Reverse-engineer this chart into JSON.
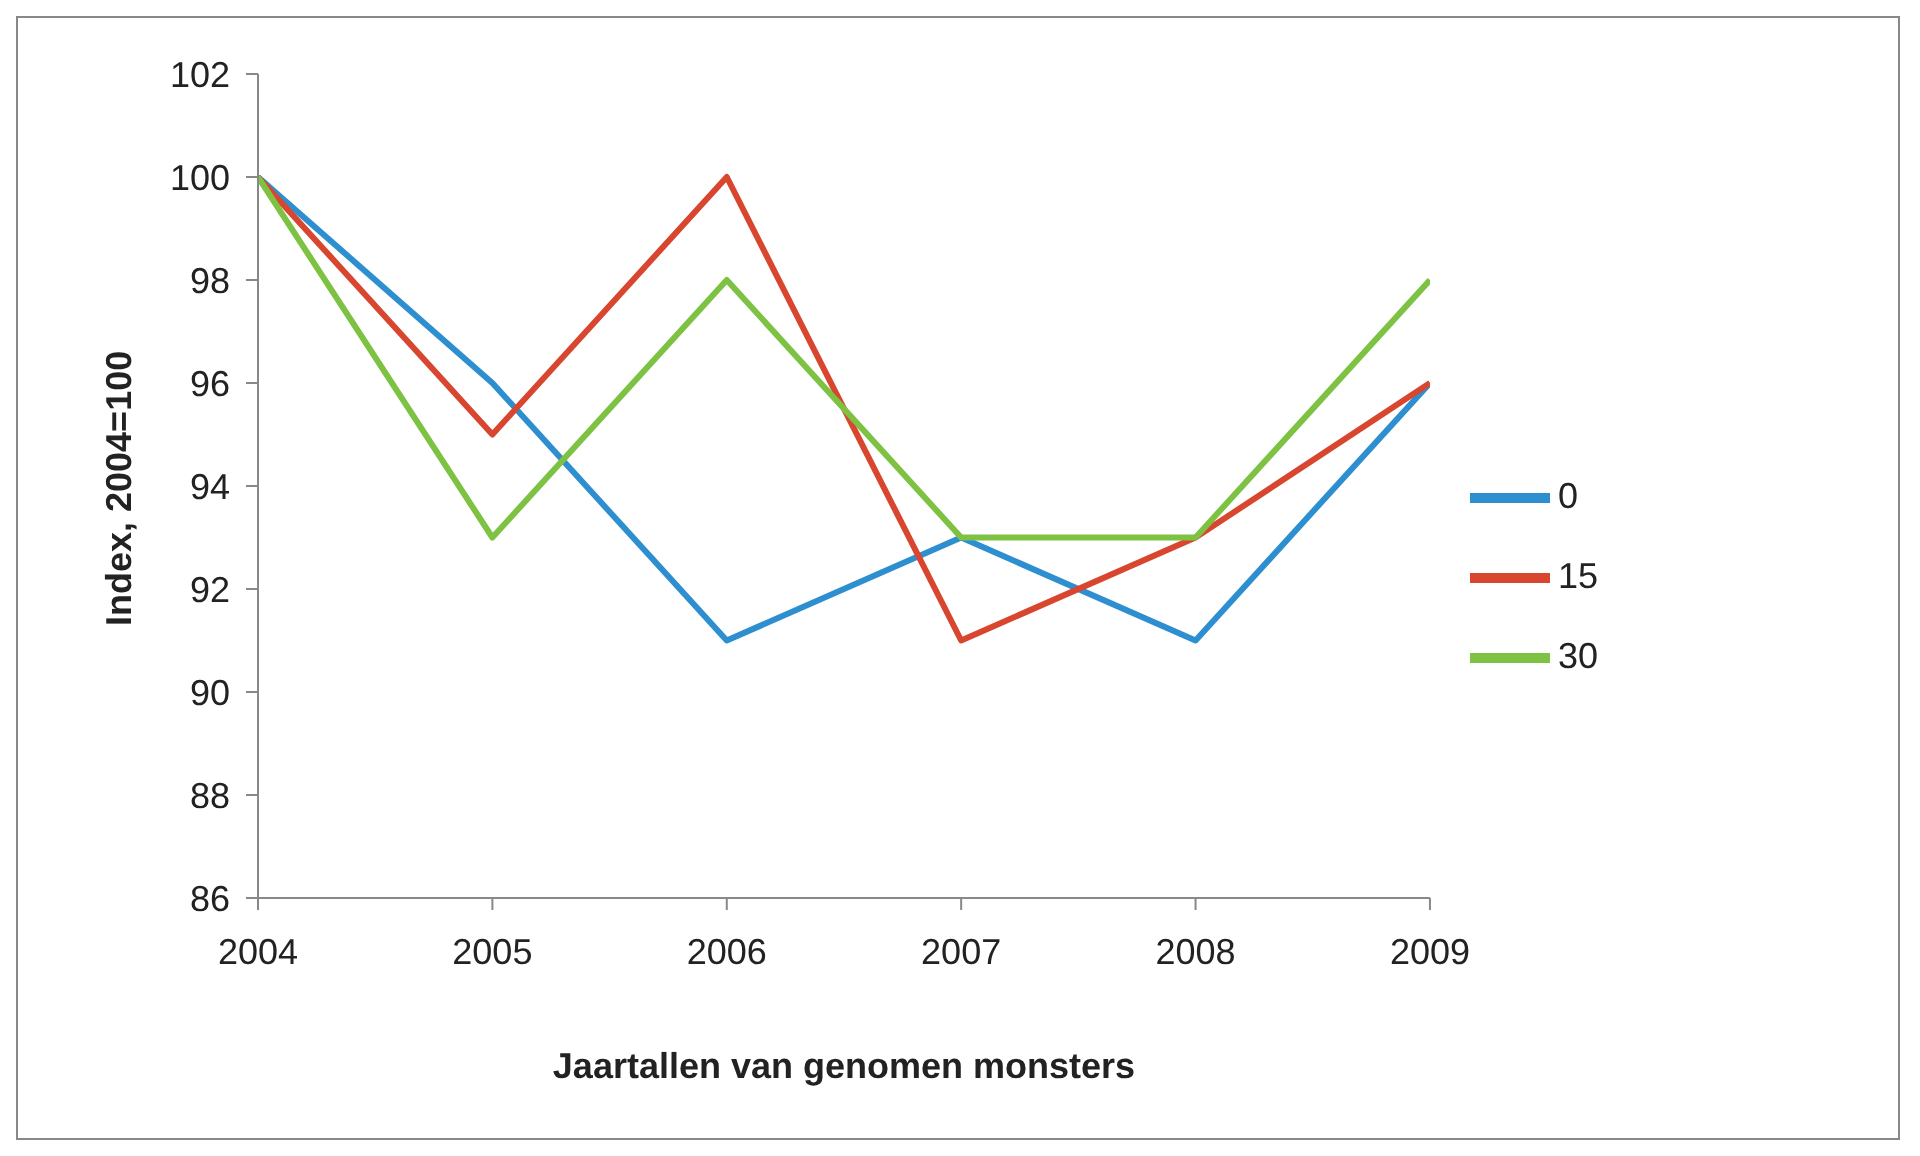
{
  "chart_data": {
    "type": "line",
    "xlabel": "Jaartallen van genomen monsters",
    "ylabel": "Index, 2004=100",
    "x": [
      2004,
      2005,
      2006,
      2007,
      2008,
      2009
    ],
    "series": [
      {
        "name": "0",
        "color": "#2e8fd0",
        "values": [
          100,
          96,
          91,
          93,
          91,
          96
        ]
      },
      {
        "name": "15",
        "color": "#d9462f",
        "values": [
          100,
          95,
          100,
          91,
          93,
          96
        ]
      },
      {
        "name": "30",
        "color": "#7dc242",
        "values": [
          100,
          93,
          98,
          93,
          93,
          98
        ]
      }
    ],
    "xlim": [
      2004,
      2009
    ],
    "xticks": [
      2004,
      2005,
      2006,
      2007,
      2008,
      2009
    ],
    "ylim": [
      86,
      102
    ],
    "yticks": [
      86,
      88,
      90,
      92,
      94,
      96,
      98,
      100,
      102
    ],
    "grid": false,
    "legend": "right",
    "marker": "none",
    "line_style": "solid"
  }
}
